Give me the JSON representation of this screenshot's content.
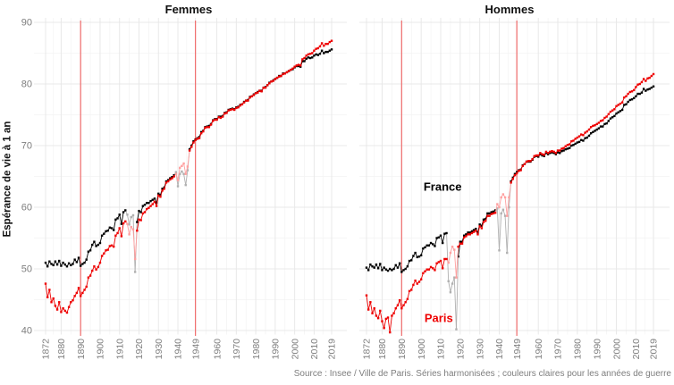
{
  "chart_data": {
    "type": "line",
    "title": "",
    "ylabel": "Espérance de vie à 1 an",
    "caption": "Source : Insee / Ville de Paris. Séries harmonisées ; couleurs claires pour les années de guerre",
    "start_year": 1872,
    "end_year": 2019,
    "x_ticks": [
      1872,
      1880,
      1890,
      1900,
      1910,
      1920,
      1930,
      1940,
      1949,
      1960,
      1970,
      1980,
      1990,
      2000,
      2010,
      2019
    ],
    "y_ticks": [
      40,
      50,
      60,
      70,
      80,
      90
    ],
    "ylim": [
      38,
      92
    ],
    "grid": true,
    "legend_position": "none",
    "vlines": [
      1890,
      1949
    ],
    "war_periods": [
      [
        1914,
        1918
      ],
      [
        1939,
        1945
      ]
    ],
    "colors": {
      "france": "#000000",
      "paris": "#ee0000",
      "france_war": "#b0b0b0",
      "paris_war": "#ffa0a0",
      "vline": "#f06c6c"
    },
    "panels": [
      {
        "title": "Femmes",
        "annotations": [],
        "series": [
          {
            "name": "France",
            "color": "#000000",
            "war_color": "#b0b0b0",
            "values": [
              51.0,
              50.4,
              51.2,
              50.8,
              50.6,
              51.2,
              50.7,
              51.3,
              50.5,
              51.0,
              50.7,
              50.4,
              50.9,
              50.6,
              50.8,
              51.5,
              51.1,
              51.8,
              50.5,
              50.8,
              51.0,
              51.5,
              52.8,
              53.0,
              53.9,
              54.4,
              53.7,
              53.9,
              54.2,
              55.4,
              55.7,
              56.1,
              56.2,
              56.7,
              56.6,
              56.3,
              58.0,
              58.2,
              58.8,
              57.3,
              59.2,
              59.5,
              58.8,
              57.2,
              58.4,
              58.7,
              49.5,
              57.6,
              59.4,
              59.2,
              60.2,
              60.4,
              60.7,
              60.7,
              61.0,
              61.2,
              61.4,
              60.7,
              62.2,
              62.0,
              63.0,
              63.2,
              64.2,
              64.4,
              64.7,
              64.9,
              65.2,
              65.7,
              63.4,
              65.4,
              65.8,
              65.4,
              63.6,
              66.0,
              69.4,
              70.0,
              70.7,
              71.0,
              71.2,
              71.4,
              72.2,
              72.4,
              73.0,
              73.1,
              73.2,
              73.5,
              74.1,
              74.3,
              74.3,
              74.7,
              74.7,
              74.8,
              75.3,
              75.4,
              75.8,
              75.9,
              76.0,
              75.9,
              76.2,
              76.3,
              76.6,
              76.7,
              77.1,
              77.3,
              77.4,
              77.9,
              78.0,
              78.3,
              78.5,
              78.7,
              78.9,
              78.9,
              79.4,
              79.5,
              79.8,
              80.2,
              80.4,
              80.6,
              80.8,
              81.0,
              81.3,
              81.3,
              81.7,
              81.7,
              81.9,
              82.1,
              82.3,
              82.4,
              82.7,
              82.9,
              82.9,
              82.8,
              83.7,
              83.7,
              84.1,
              84.3,
              84.2,
              84.3,
              84.6,
              84.8,
              84.7,
              84.9,
              85.4,
              85.0,
              85.2,
              85.2,
              85.4,
              85.6
            ]
          },
          {
            "name": "Paris",
            "color": "#ee0000",
            "war_color": "#ffa0a0",
            "values": [
              47.6,
              45.4,
              46.6,
              44.6,
              45.2,
              44.0,
              43.4,
              44.6,
              43.0,
              43.6,
              43.2,
              42.9,
              43.8,
              44.6,
              44.9,
              45.6,
              46.1,
              46.9,
              45.6,
              46.1,
              46.6,
              47.1,
              48.6,
              48.9,
              49.7,
              50.4,
              49.9,
              50.3,
              51.0,
              52.1,
              52.5,
              53.0,
              53.1,
              53.7,
              53.8,
              53.6,
              55.4,
              55.8,
              56.6,
              55.3,
              57.4,
              57.7,
              57.3,
              55.6,
              56.8,
              56.4,
              51.6,
              56.2,
              58.0,
              57.9,
              59.0,
              59.2,
              59.7,
              59.9,
              60.2,
              60.5,
              60.9,
              60.2,
              61.9,
              61.7,
              62.7,
              63.0,
              64.0,
              64.2,
              64.5,
              64.7,
              65.0,
              65.4,
              64.4,
              66.4,
              66.7,
              67.1,
              65.4,
              66.6,
              69.2,
              69.8,
              70.5,
              70.9,
              71.1,
              71.2,
              72.0,
              72.3,
              72.9,
              73.0,
              73.0,
              73.4,
              74.0,
              74.2,
              74.2,
              74.6,
              74.5,
              74.7,
              75.2,
              75.3,
              75.7,
              75.8,
              75.9,
              75.8,
              76.1,
              76.2,
              76.5,
              76.7,
              77.0,
              77.3,
              77.3,
              77.8,
              78.0,
              78.2,
              78.5,
              78.6,
              78.9,
              78.8,
              79.4,
              79.4,
              79.8,
              80.1,
              80.4,
              80.5,
              80.8,
              81.0,
              81.2,
              81.3,
              81.6,
              81.7,
              81.9,
              82.1,
              82.3,
              82.5,
              82.8,
              83.0,
              83.1,
              83.0,
              84.0,
              84.2,
              84.6,
              84.8,
              84.9,
              85.0,
              85.4,
              85.7,
              85.8,
              86.1,
              86.6,
              86.2,
              86.5,
              86.5,
              86.8,
              87.0
            ]
          }
        ]
      },
      {
        "title": "Hommes",
        "annotations": [
          {
            "text": "France",
            "year": 1911,
            "value": 63.3,
            "color": "#000000"
          },
          {
            "text": "Paris",
            "year": 1909,
            "value": 42.0,
            "color": "#ee0000"
          }
        ],
        "series": [
          {
            "name": "France",
            "color": "#000000",
            "war_color": "#b0b0b0",
            "values": [
              50.2,
              49.8,
              50.7,
              50.4,
              50.2,
              50.7,
              50.1,
              50.8,
              49.8,
              50.2,
              49.9,
              49.7,
              50.0,
              49.8,
              50.0,
              50.6,
              50.2,
              50.9,
              49.5,
              49.8,
              50.0,
              50.4,
              51.3,
              51.4,
              52.1,
              52.6,
              51.9,
              52.0,
              52.2,
              53.3,
              53.5,
              53.8,
              53.8,
              54.2,
              54.0,
              53.7,
              55.0,
              55.1,
              55.4,
              54.2,
              55.7,
              55.8,
              48.0,
              46.2,
              47.6,
              48.6,
              40.2,
              52.0,
              54.4,
              54.4,
              55.4,
              55.6,
              55.9,
              55.9,
              56.1,
              56.3,
              56.5,
              55.9,
              57.2,
              57.0,
              58.0,
              58.1,
              59.0,
              59.0,
              59.2,
              59.3,
              59.5,
              59.8,
              53.0,
              59.0,
              59.6,
              58.6,
              52.6,
              60.0,
              64.2,
              64.8,
              65.4,
              65.7,
              66.0,
              66.1,
              66.8,
              67.0,
              67.4,
              67.4,
              67.4,
              67.7,
              68.2,
              68.3,
              68.2,
              68.6,
              68.4,
              68.3,
              68.8,
              68.6,
              68.8,
              68.9,
              68.8,
              68.6,
              68.9,
              68.8,
              69.1,
              69.2,
              69.4,
              69.5,
              69.6,
              70.0,
              70.1,
              70.3,
              70.5,
              70.6,
              70.9,
              70.8,
              71.2,
              71.3,
              71.6,
              72.0,
              72.2,
              72.4,
              72.6,
              72.8,
              73.1,
              73.1,
              73.5,
              73.6,
              74.0,
              74.4,
              74.6,
              74.8,
              75.2,
              75.4,
              75.6,
              75.8,
              76.6,
              76.7,
              77.1,
              77.4,
              77.5,
              77.7,
              78.0,
              78.4,
              78.4,
              78.6,
              79.2,
              78.9,
              79.1,
              79.2,
              79.4,
              79.6
            ]
          },
          {
            "name": "Paris",
            "color": "#ee0000",
            "war_color": "#ffa0a0",
            "values": [
              45.7,
              43.4,
              44.6,
              42.8,
              43.6,
              42.4,
              42.0,
              43.2,
              41.5,
              40.4,
              41.9,
              42.1,
              39.7,
              42.4,
              42.8,
              43.6,
              44.1,
              44.9,
              43.6,
              44.1,
              44.6,
              45.1,
              46.4,
              46.6,
              47.4,
              48.1,
              47.6,
              47.9,
              48.3,
              49.3,
              49.6,
              49.9,
              49.9,
              50.3,
              50.1,
              49.8,
              50.9,
              51.1,
              51.3,
              50.1,
              51.6,
              51.6,
              51.0,
              52.6,
              53.6,
              53.1,
              48.6,
              53.6,
              54.1,
              54.1,
              55.1,
              55.3,
              55.6,
              55.6,
              55.8,
              56.0,
              56.2,
              55.6,
              56.9,
              56.6,
              57.6,
              57.8,
              58.6,
              58.6,
              58.9,
              59.0,
              59.1,
              60.5,
              60.0,
              61.6,
              62.1,
              61.6,
              58.6,
              61.6,
              64.0,
              64.6,
              65.2,
              65.5,
              65.9,
              66.0,
              66.7,
              67.0,
              67.4,
              67.5,
              67.5,
              67.8,
              68.3,
              68.4,
              68.4,
              68.8,
              68.6,
              68.5,
              69.0,
              68.8,
              69.0,
              69.1,
              69.0,
              68.8,
              69.2,
              69.2,
              69.5,
              69.6,
              69.9,
              70.1,
              70.2,
              70.7,
              70.8,
              71.1,
              71.3,
              71.5,
              71.8,
              71.7,
              72.1,
              72.3,
              72.6,
              73.0,
              73.2,
              73.3,
              73.5,
              73.7,
              74.0,
              74.1,
              74.5,
              74.7,
              75.1,
              75.5,
              75.7,
              75.9,
              76.4,
              76.6,
              76.8,
              77.0,
              77.8,
              78.0,
              78.4,
              78.7,
              78.8,
              79.0,
              79.5,
              79.9,
              80.0,
              80.3,
              80.8,
              80.5,
              80.9,
              81.0,
              81.3,
              81.6
            ]
          }
        ]
      }
    ]
  }
}
